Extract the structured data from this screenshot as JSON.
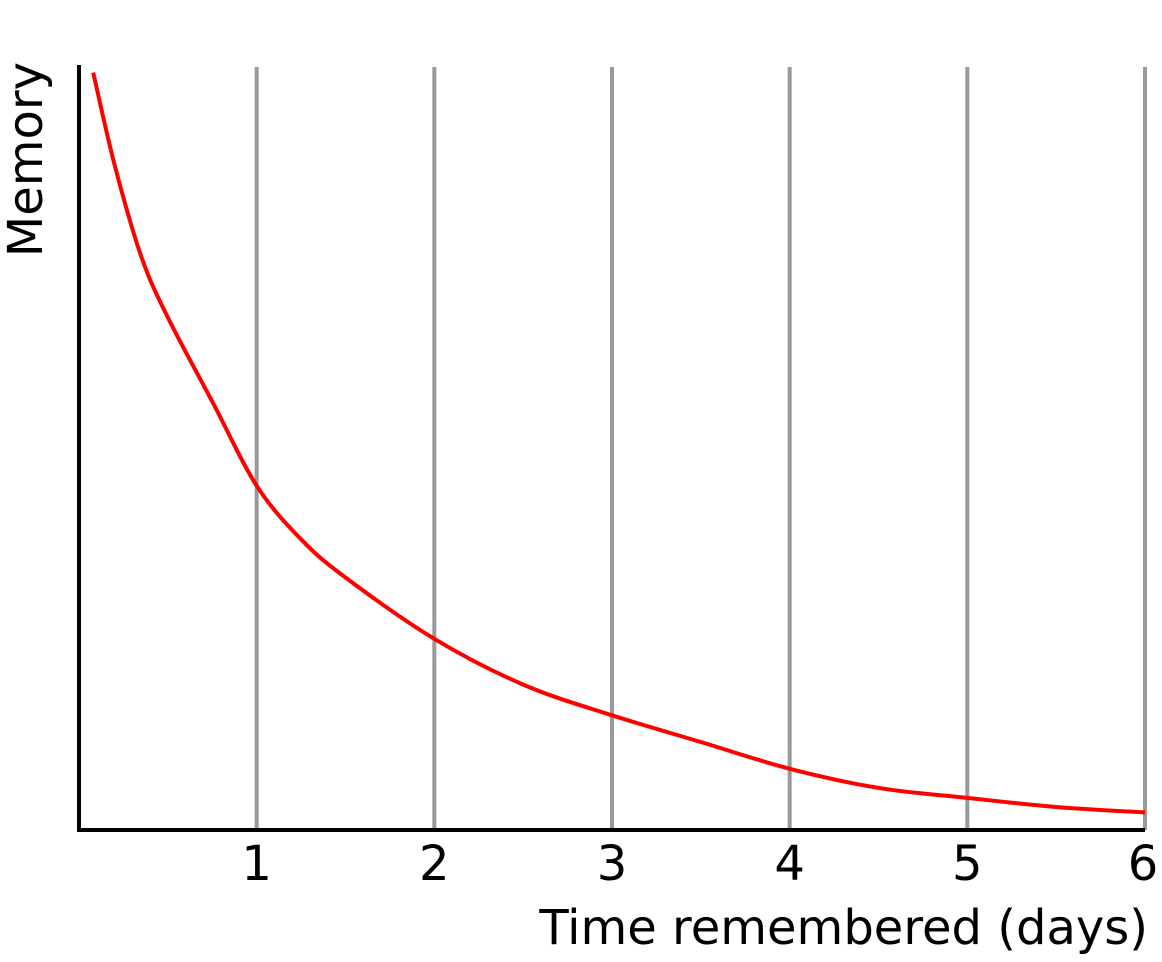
{
  "chart_data": {
    "type": "line",
    "title": "",
    "xlabel": "Time remembered (days)",
    "ylabel": "Memory",
    "xlim": [
      0,
      6
    ],
    "ylim": [
      0,
      100
    ],
    "x_ticks": [
      1,
      2,
      3,
      4,
      5,
      6
    ],
    "x_tick_labels": [
      "1",
      "2",
      "3",
      "4",
      "5",
      "6"
    ],
    "grid": "vertical",
    "legend": "none",
    "series": [
      {
        "color": "#ff0000",
        "x": [
          0.08,
          0.2,
          0.35,
          0.5,
          0.75,
          1.0,
          1.25,
          1.5,
          2.0,
          2.5,
          3.0,
          3.5,
          4.0,
          4.5,
          5.0,
          5.5,
          6.0
        ],
        "y": [
          99,
          87,
          75,
          67,
          56,
          45,
          38,
          33,
          25,
          19,
          15,
          11.5,
          8,
          5.5,
          4.2,
          3,
          2.3
        ]
      }
    ]
  },
  "colors": {
    "curve": "#ff0000",
    "gridline": "#999999",
    "axis": "#000000"
  }
}
